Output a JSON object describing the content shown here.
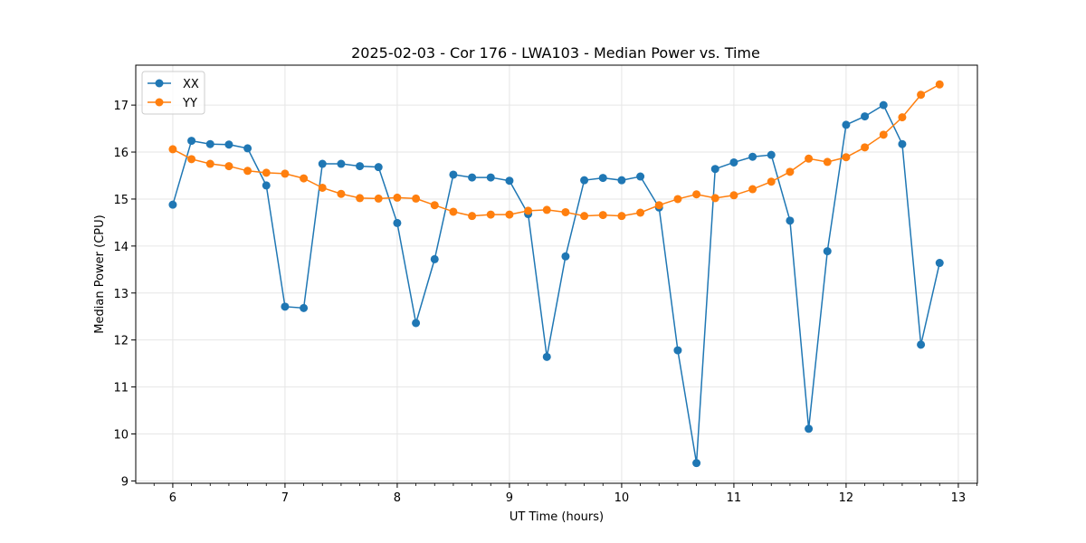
{
  "chart_data": {
    "type": "line",
    "title": "2025-02-03 - Cor 176 - LWA103 - Median Power vs. Time",
    "xlabel": "UT Time (hours)",
    "ylabel": "Median Power (CPU)",
    "xlim": [
      5.67,
      13.17
    ],
    "ylim": [
      8.95,
      17.85
    ],
    "xticks": [
      6,
      7,
      8,
      9,
      10,
      11,
      12,
      13
    ],
    "yticks": [
      9,
      10,
      11,
      12,
      13,
      14,
      15,
      16,
      17
    ],
    "grid": true,
    "legend_position": "top-left",
    "x": [
      6.0,
      6.1667,
      6.3333,
      6.5,
      6.6667,
      6.8333,
      7.0,
      7.1667,
      7.3333,
      7.5,
      7.6667,
      7.8333,
      8.0,
      8.1667,
      8.3333,
      8.5,
      8.6667,
      8.8333,
      9.0,
      9.1667,
      9.3333,
      9.5,
      9.6667,
      9.8333,
      10.0,
      10.1667,
      10.3333,
      10.5,
      10.6667,
      10.8333,
      11.0,
      11.1667,
      11.3333,
      11.5,
      11.6667,
      11.8333,
      12.0,
      12.1667,
      12.3333,
      12.5,
      12.6667,
      12.8333
    ],
    "series": [
      {
        "name": "XX",
        "color": "#1f77b4",
        "values": [
          14.88,
          16.24,
          16.17,
          16.16,
          16.08,
          15.29,
          12.71,
          12.68,
          15.75,
          15.75,
          15.7,
          15.68,
          14.49,
          12.36,
          13.72,
          15.52,
          15.46,
          15.46,
          15.39,
          14.68,
          11.64,
          13.78,
          15.4,
          15.45,
          15.4,
          15.48,
          14.82,
          11.78,
          9.38,
          15.64,
          15.78,
          15.9,
          15.94,
          14.54,
          10.11,
          13.89,
          16.58,
          16.76,
          17.0,
          16.17,
          11.9,
          13.64
        ]
      },
      {
        "name": "YY",
        "color": "#ff7f0e",
        "values": [
          16.06,
          15.85,
          15.75,
          15.7,
          15.6,
          15.56,
          15.54,
          15.44,
          15.24,
          15.11,
          15.02,
          15.01,
          15.03,
          15.01,
          14.87,
          14.73,
          14.64,
          14.67,
          14.67,
          14.75,
          14.77,
          14.72,
          14.64,
          14.66,
          14.64,
          14.71,
          14.87,
          15.0,
          15.1,
          15.02,
          15.08,
          15.21,
          15.37,
          15.58,
          15.86,
          15.79,
          15.89,
          16.1,
          16.37,
          16.74,
          17.22,
          17.44
        ]
      }
    ]
  }
}
